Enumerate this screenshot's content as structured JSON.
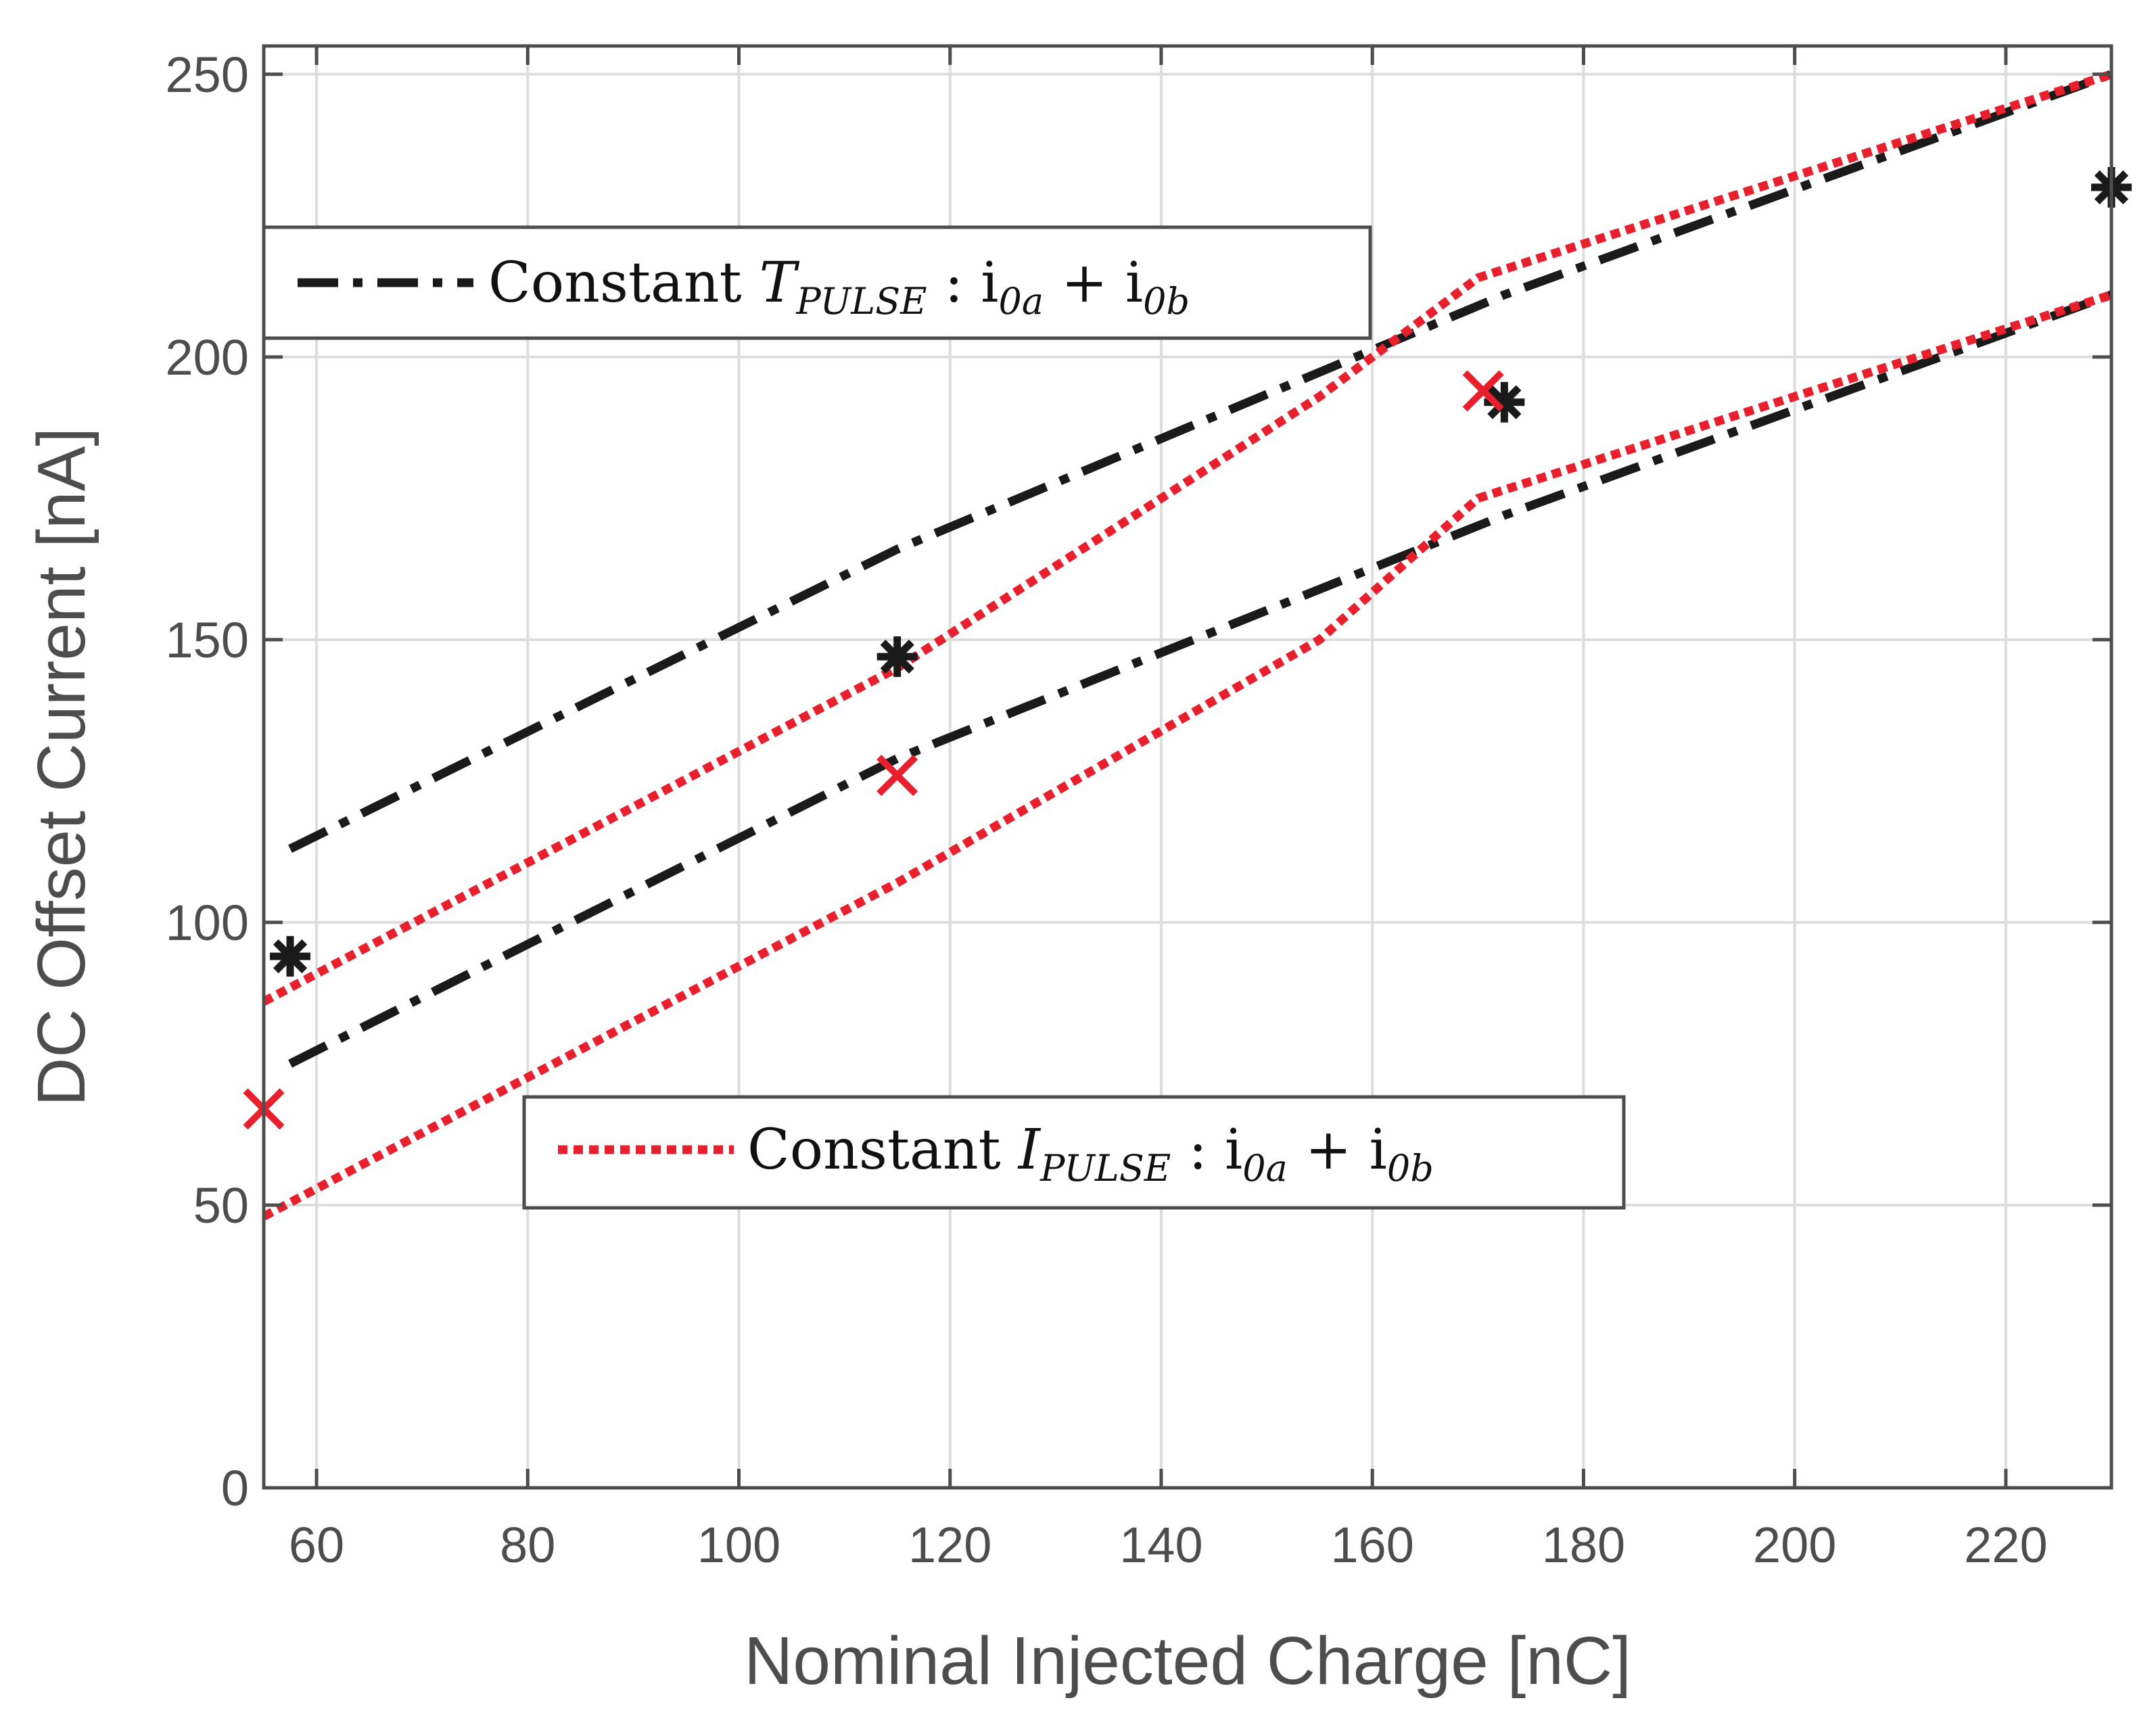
{
  "chart_data": {
    "type": "line",
    "xlabel": "Nominal Injected Charge  [nC]",
    "ylabel": "DC Offset Current [nA]",
    "xlim": [
      55,
      230
    ],
    "ylim": [
      0,
      255
    ],
    "xticks": [
      60,
      80,
      100,
      120,
      140,
      160,
      180,
      200,
      220
    ],
    "yticks": [
      0,
      50,
      100,
      150,
      200,
      250
    ],
    "grid": true,
    "colors": {
      "tpulse": "#1a1a1a",
      "ipulse": "#e8202e",
      "axis": "#4d4d4d",
      "grid": "#dddddd"
    },
    "series": [
      {
        "name": "tpulse_upper",
        "group": "tpulse",
        "style": "dashdot",
        "x": [
          57.5,
          115,
          172.5,
          230
        ],
        "y": [
          113,
          166,
          211,
          250
        ]
      },
      {
        "name": "tpulse_lower",
        "group": "tpulse",
        "style": "dashdot",
        "x": [
          57.5,
          115,
          172.5,
          230
        ],
        "y": [
          75,
          129,
          172,
          211
        ]
      },
      {
        "name": "ipulse_upper",
        "group": "ipulse",
        "style": "dotted",
        "x": [
          55,
          115,
          155,
          170,
          230
        ],
        "y": [
          86,
          145,
          193,
          214,
          250
        ]
      },
      {
        "name": "ipulse_lower",
        "group": "ipulse",
        "style": "dotted",
        "x": [
          55,
          115,
          155,
          170,
          230
        ],
        "y": [
          48,
          107,
          150,
          175,
          211
        ]
      }
    ],
    "markers": [
      {
        "group": "tpulse",
        "shape": "asterisk",
        "x": 57.5,
        "y": 94
      },
      {
        "group": "tpulse",
        "shape": "asterisk",
        "x": 115,
        "y": 147
      },
      {
        "group": "tpulse",
        "shape": "asterisk",
        "x": 172.5,
        "y": 192
      },
      {
        "group": "tpulse",
        "shape": "asterisk",
        "x": 230,
        "y": 230
      },
      {
        "group": "ipulse",
        "shape": "cross",
        "x": 55,
        "y": 67
      },
      {
        "group": "ipulse",
        "shape": "cross",
        "x": 115,
        "y": 126
      },
      {
        "group": "ipulse",
        "shape": "cross",
        "x": 170.5,
        "y": 194
      }
    ],
    "legend": [
      {
        "group": "tpulse",
        "style": "dashdot",
        "placement": "upper-left",
        "prefix": "Constant ",
        "symbol": "T",
        "symbol_sub": "PULSE",
        "suffix_a": " : i",
        "sub_a": "0a",
        "plus": " + i",
        "sub_b": "0b"
      },
      {
        "group": "ipulse",
        "style": "dotted",
        "placement": "lower-center",
        "prefix": "Constant ",
        "symbol": "I",
        "symbol_sub": "PULSE",
        "suffix_a": " : i",
        "sub_a": "0a",
        "plus": " + i",
        "sub_b": "0b"
      }
    ]
  }
}
